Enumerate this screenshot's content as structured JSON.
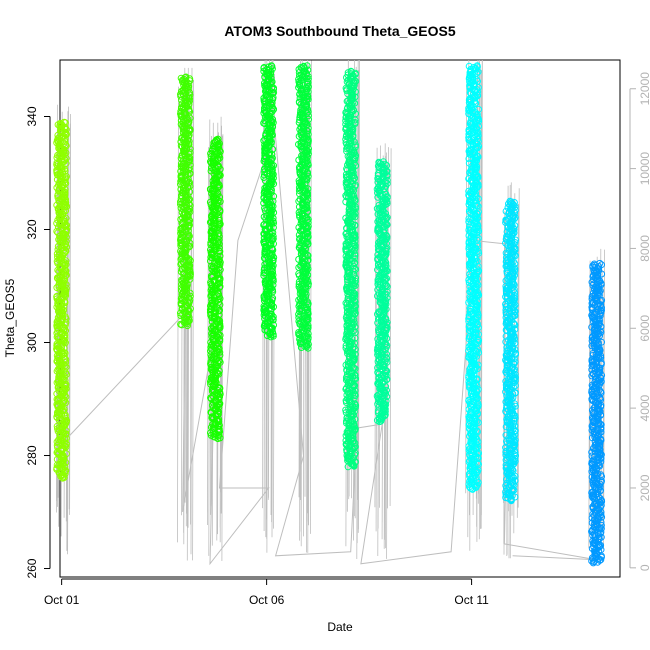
{
  "chart_data": {
    "type": "scatter",
    "title": "ATOM3 Southbound Theta_GEOS5",
    "xlabel": "Date",
    "ylabel": "Theta_GEOS5",
    "x_ticks": [
      "Oct 01",
      "Oct 06",
      "Oct 11"
    ],
    "x_tick_days": [
      1,
      6,
      11
    ],
    "xlim_days": [
      0.96,
      14.62
    ],
    "y_ticks": [
      260,
      280,
      300,
      320,
      340
    ],
    "ylim": [
      258.5,
      350
    ],
    "y2_ticks": [
      0,
      2000,
      4000,
      6000,
      8000,
      10000,
      12000
    ],
    "y2_label": "",
    "y2lim": [
      -230,
      12720
    ],
    "grid": false,
    "legend": "none",
    "colors": {
      "altitude_line": "#bebebe",
      "axis": "#000000",
      "right_axis": "#b3b3b3"
    },
    "series": [
      {
        "day": 1.0,
        "ymin": 276,
        "ymax": 339,
        "color": "#8fff00"
      },
      {
        "day": 4.02,
        "ymin": 303,
        "ymax": 347,
        "color": "#40ff00"
      },
      {
        "day": 4.75,
        "ymin": 283,
        "ymax": 336,
        "color": "#18ff00"
      },
      {
        "day": 6.05,
        "ymin": 301,
        "ymax": 349,
        "color": "#00ff22"
      },
      {
        "day": 6.9,
        "ymin": 299,
        "ymax": 349,
        "color": "#00ff3c"
      },
      {
        "day": 8.05,
        "ymin": 278,
        "ymax": 348,
        "color": "#00ff80"
      },
      {
        "day": 8.82,
        "ymin": 286,
        "ymax": 332,
        "color": "#00ff9c"
      },
      {
        "day": 11.05,
        "ymin": 274,
        "ymax": 349,
        "color": "#00ffff"
      },
      {
        "day": 11.95,
        "ymin": 272,
        "ymax": 325,
        "color": "#00e6ff"
      },
      {
        "day": 14.05,
        "ymin": 261,
        "ymax": 314,
        "color": "#0099ff"
      }
    ],
    "altitude_profile": [
      {
        "day": 1.0,
        "y2": 3100
      },
      {
        "day": 4.02,
        "y2": 6400
      },
      {
        "day": 3.95,
        "y2": 1400
      },
      {
        "day": 4.75,
        "y2": 6000
      },
      {
        "day": 4.62,
        "y2": 100
      },
      {
        "day": 6.05,
        "y2": 2000
      },
      {
        "day": 4.85,
        "y2": 2000
      },
      {
        "day": 5.3,
        "y2": 8200
      },
      {
        "day": 6.2,
        "y2": 11000
      },
      {
        "day": 6.9,
        "y2": 2800
      },
      {
        "day": 6.22,
        "y2": 300
      },
      {
        "day": 8.05,
        "y2": 400
      },
      {
        "day": 8.2,
        "y2": 3500
      },
      {
        "day": 8.82,
        "y2": 3600
      },
      {
        "day": 8.3,
        "y2": 100
      },
      {
        "day": 10.5,
        "y2": 400
      },
      {
        "day": 11.05,
        "y2": 8200
      },
      {
        "day": 11.95,
        "y2": 8100
      },
      {
        "day": 11.8,
        "y2": 600
      },
      {
        "day": 14.05,
        "y2": 200
      },
      {
        "day": 12.0,
        "y2": 300
      }
    ]
  }
}
